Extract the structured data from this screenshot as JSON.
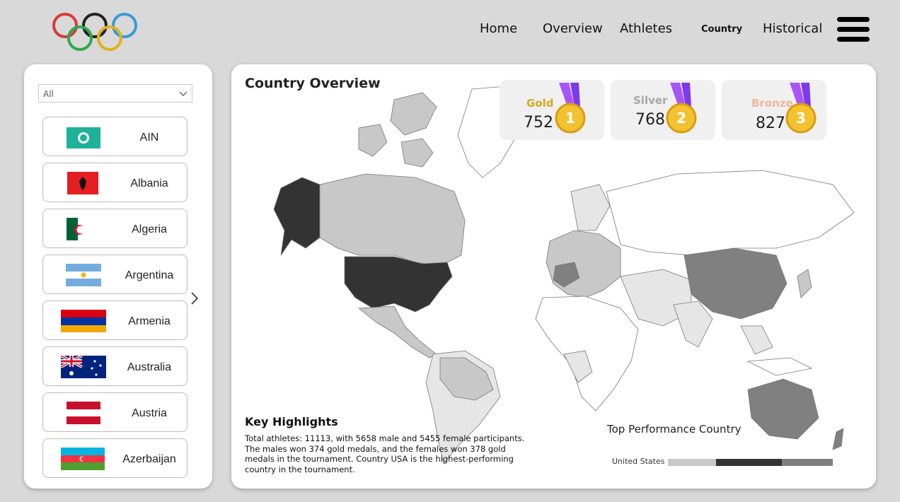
{
  "nav": {
    "items": [
      {
        "label": "Home"
      },
      {
        "label": "Overview"
      },
      {
        "label": "Athletes"
      },
      {
        "label": "Country"
      },
      {
        "label": "Historical"
      }
    ]
  },
  "slicer": {
    "value": "All"
  },
  "countries": [
    {
      "name": "AIN"
    },
    {
      "name": "Albania"
    },
    {
      "name": "Algeria"
    },
    {
      "name": "Argentina"
    },
    {
      "name": "Armenia"
    },
    {
      "name": "Australia"
    },
    {
      "name": "Austria"
    },
    {
      "name": "Azerbaijan"
    }
  ],
  "overview": {
    "title": "Country Overview",
    "medals": {
      "gold": {
        "label": "Gold",
        "value": "752",
        "color": "#d4a91c",
        "rank": "1"
      },
      "silver": {
        "label": "Silver",
        "value": "768",
        "color": "#a8a8a8",
        "rank": "2"
      },
      "bronze": {
        "label": "Bronze",
        "value": "827",
        "color": "#f0b49c",
        "rank": "3"
      }
    }
  },
  "highlights": {
    "title": "Key Highlights",
    "text": "Total athletes: 11113, with 5658 male and 5455 female participants. The males won 374 gold medals, and the females won 378 gold medals in the tournament. Country USA is the highest-performing country in the tournament."
  },
  "top_performance": {
    "title": "Top Performance Country",
    "country": "United States",
    "segments": [
      0.29,
      0.4,
      0.31
    ],
    "colors": [
      "#c8c8c8",
      "#333333",
      "#808080"
    ]
  },
  "colors": {
    "map_dark": "#333333",
    "map_mid": "#808080",
    "map_light": "#c8c8c8",
    "map_pale": "#e6e6e6"
  }
}
